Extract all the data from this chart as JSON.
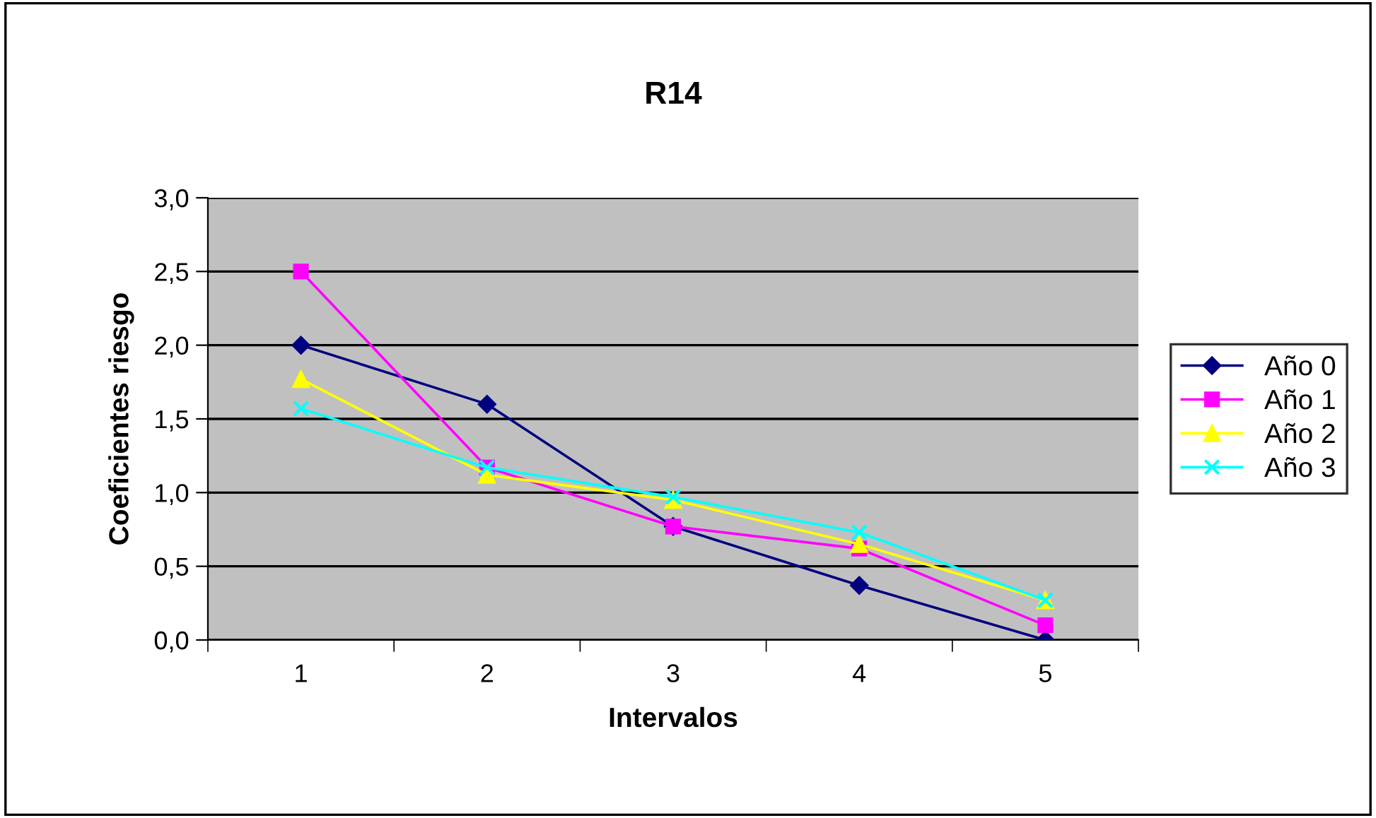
{
  "chart_data": {
    "type": "line",
    "title": "R14",
    "xlabel": "Intervalos",
    "ylabel": "Coeficientes riesgo",
    "categories": [
      "1",
      "2",
      "3",
      "4",
      "5"
    ],
    "series": [
      {
        "name": "Año 0",
        "color": "#000080",
        "marker": "diamond",
        "values": [
          2.0,
          1.6,
          0.77,
          0.37,
          0.0
        ]
      },
      {
        "name": "Año 1",
        "color": "#ff00ff",
        "marker": "square",
        "values": [
          2.5,
          1.17,
          0.77,
          0.62,
          0.1
        ]
      },
      {
        "name": "Año 2",
        "color": "#ffff00",
        "marker": "triangle",
        "values": [
          1.77,
          1.12,
          0.95,
          0.65,
          0.27
        ]
      },
      {
        "name": "Año 3",
        "color": "#00ffff",
        "marker": "cross",
        "values": [
          1.57,
          1.17,
          0.97,
          0.73,
          0.27
        ]
      }
    ],
    "ylim": [
      0,
      3
    ],
    "yticks": [
      {
        "value": 0,
        "label": "0,0"
      },
      {
        "value": 0.5,
        "label": "0,5"
      },
      {
        "value": 1,
        "label": "1,0"
      },
      {
        "value": 1.5,
        "label": "1,5"
      },
      {
        "value": 2,
        "label": "2,0"
      },
      {
        "value": 2.5,
        "label": "2,5"
      },
      {
        "value": 3,
        "label": "3,0"
      }
    ],
    "grid": "y",
    "legend": "right",
    "line_style": "solid"
  }
}
